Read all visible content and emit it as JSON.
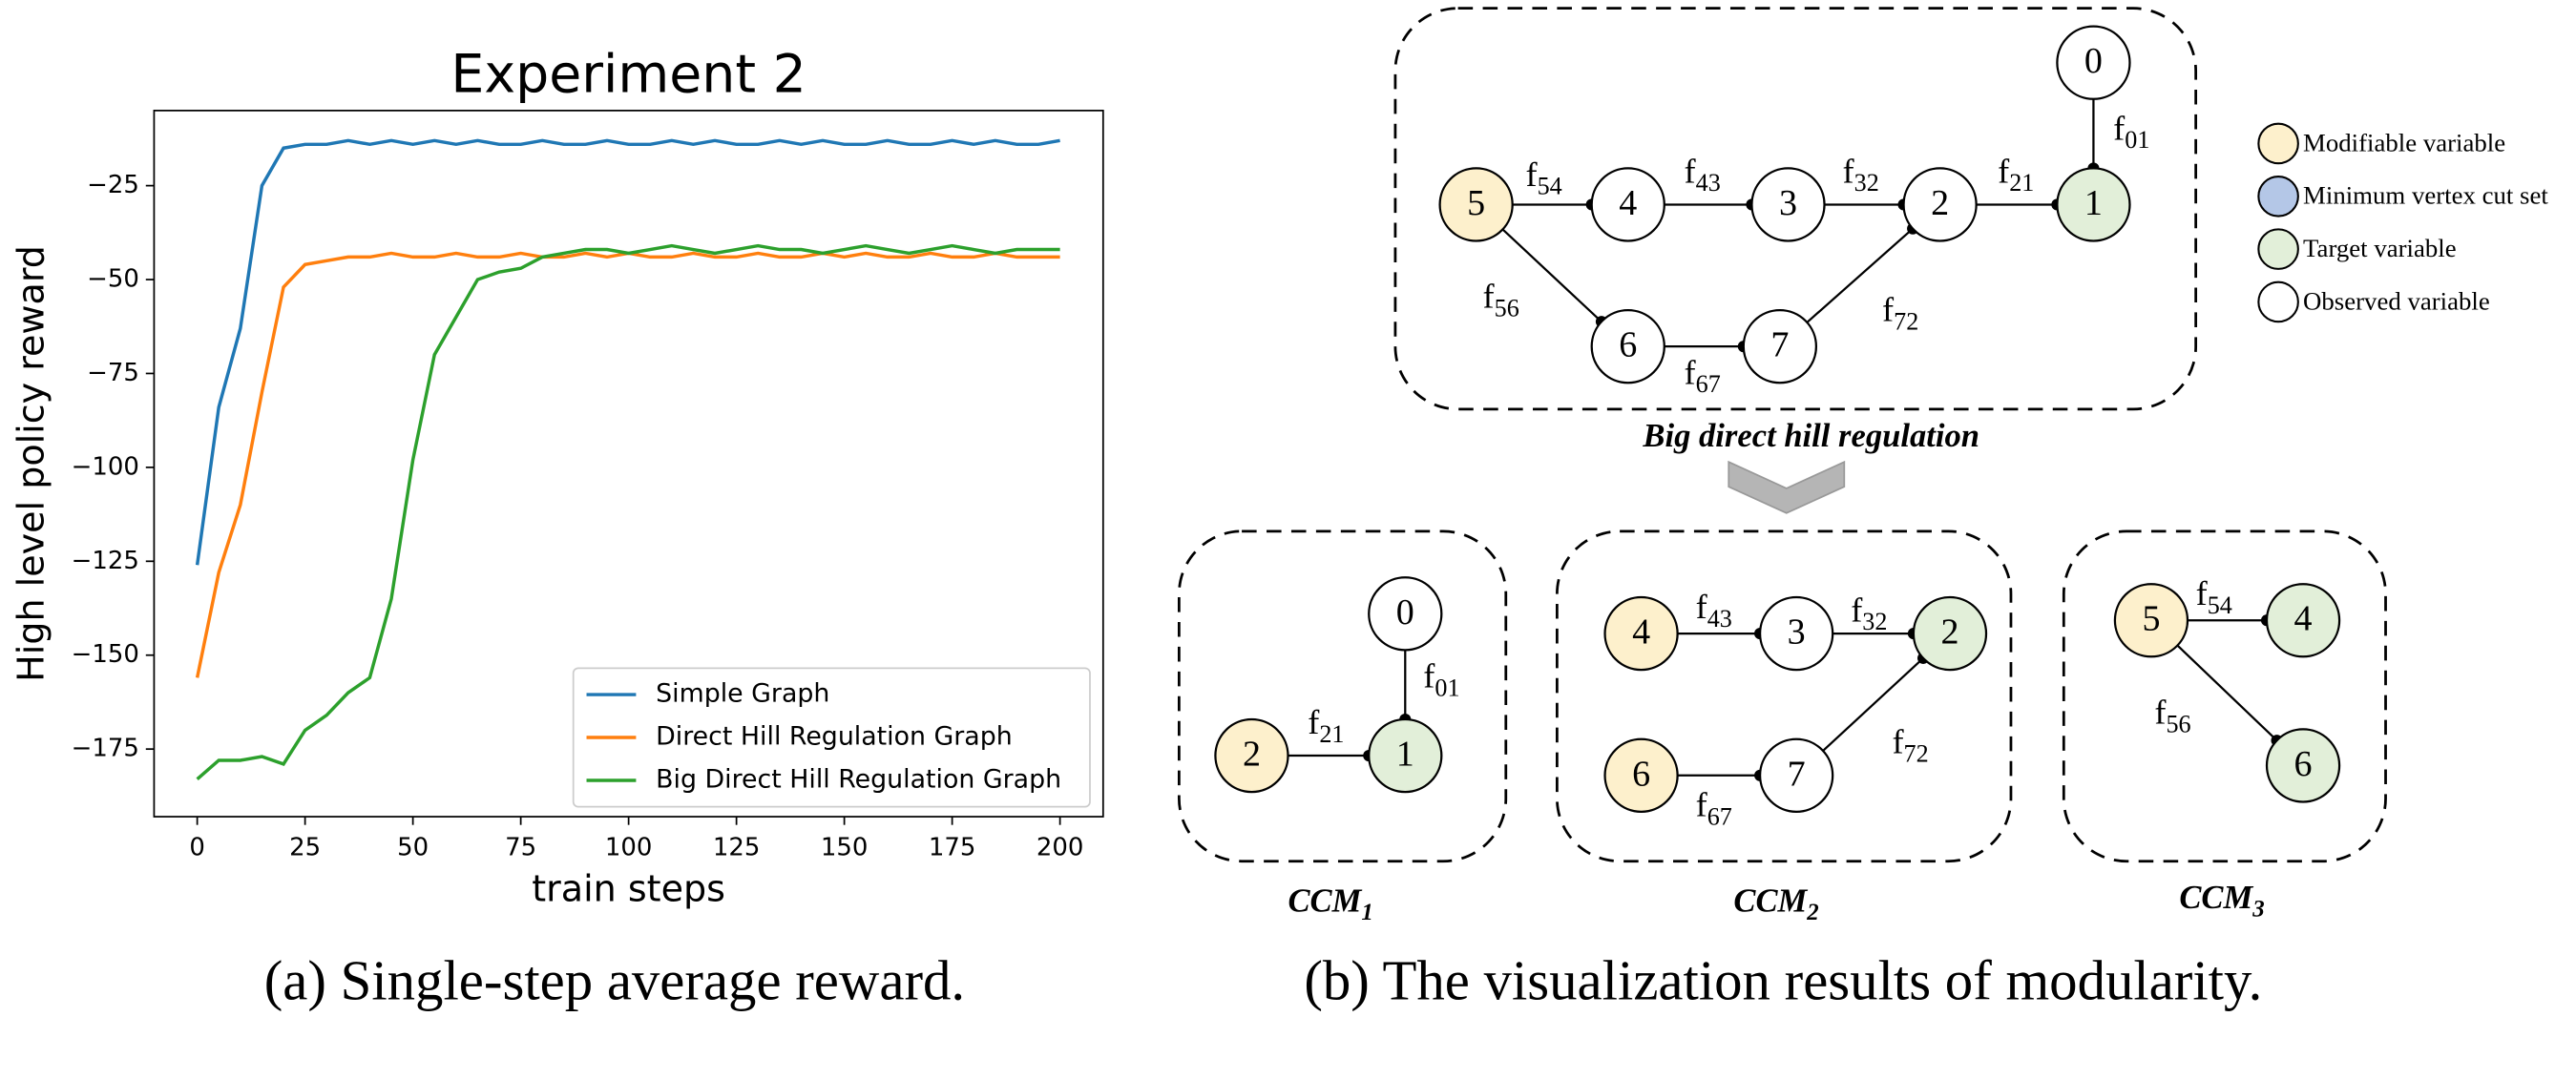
{
  "chart_data": {
    "type": "line",
    "title": "Experiment 2",
    "x_label": "train steps",
    "y_label": "High level policy reward",
    "x": [
      0,
      5,
      10,
      15,
      20,
      25,
      30,
      35,
      40,
      45,
      50,
      55,
      60,
      65,
      70,
      75,
      80,
      85,
      90,
      95,
      100,
      105,
      110,
      115,
      120,
      125,
      130,
      135,
      140,
      145,
      150,
      155,
      160,
      165,
      170,
      175,
      180,
      185,
      190,
      195,
      200
    ],
    "series": [
      {
        "name": "Simple Graph",
        "color": "#1f77b4",
        "values": [
          -126,
          -84,
          -63,
          -25,
          -15,
          -14,
          -14,
          -13,
          -14,
          -13,
          -14,
          -13,
          -14,
          -13,
          -14,
          -14,
          -13,
          -14,
          -14,
          -13,
          -14,
          -14,
          -13,
          -14,
          -13,
          -14,
          -14,
          -13,
          -14,
          -13,
          -14,
          -14,
          -13,
          -14,
          -14,
          -13,
          -14,
          -13,
          -14,
          -14,
          -13
        ]
      },
      {
        "name": "Direct Hill Regulation Graph",
        "color": "#ff7f0e",
        "values": [
          -156,
          -128,
          -110,
          -80,
          -52,
          -46,
          -45,
          -44,
          -44,
          -43,
          -44,
          -44,
          -43,
          -44,
          -44,
          -43,
          -44,
          -44,
          -43,
          -44,
          -43,
          -44,
          -44,
          -43,
          -44,
          -44,
          -43,
          -44,
          -44,
          -43,
          -44,
          -43,
          -44,
          -44,
          -43,
          -44,
          -44,
          -43,
          -44,
          -44,
          -44
        ]
      },
      {
        "name": "Big Direct Hill Regulation Graph",
        "color": "#2ca02c",
        "values": [
          -183,
          -178,
          -178,
          -177,
          -179,
          -170,
          -166,
          -160,
          -156,
          -135,
          -98,
          -70,
          -60,
          -50,
          -48,
          -47,
          -44,
          -43,
          -42,
          -42,
          -43,
          -42,
          -41,
          -42,
          -43,
          -42,
          -41,
          -42,
          -42,
          -43,
          -42,
          -41,
          -42,
          -43,
          -42,
          -41,
          -42,
          -43,
          -42,
          -42,
          -42
        ]
      }
    ],
    "xlim": [
      -10,
      210
    ],
    "ylim": [
      -193,
      -5
    ],
    "xticks": [
      0,
      25,
      50,
      75,
      100,
      125,
      150,
      175,
      200
    ],
    "yticks": [
      {
        "value": -175,
        "label": "−175"
      },
      {
        "value": -150,
        "label": "−150"
      },
      {
        "value": -125,
        "label": "−125"
      },
      {
        "value": -100,
        "label": "−100"
      },
      {
        "value": -75,
        "label": "−75"
      },
      {
        "value": -50,
        "label": "−50"
      },
      {
        "value": -25,
        "label": "−25"
      }
    ],
    "grid": false,
    "legend": "lower right"
  },
  "captions": [
    "(a) Single-step average reward.",
    "(b) The visualization results of modularity."
  ],
  "legend": [
    {
      "label": "Modifiable variable",
      "color": "#fdf0cc"
    },
    {
      "label": "Minimum vertex cut set",
      "color": "#b4c7e7"
    },
    {
      "label": "Target variable",
      "color": "#e2efd9"
    },
    {
      "label": "Observed variable",
      "color": "#ffffff"
    }
  ],
  "graphs": [
    {
      "title": "Big direct hill regulation",
      "nodes": [
        {
          "label": "0",
          "color": "#ffffff"
        },
        {
          "label": "1",
          "color": "#e2efd9"
        },
        {
          "label": "2",
          "color": "#ffffff"
        },
        {
          "label": "3",
          "color": "#ffffff"
        },
        {
          "label": "4",
          "color": "#ffffff"
        },
        {
          "label": "5",
          "color": "#fdf0cc"
        },
        {
          "label": "6",
          "color": "#ffffff"
        },
        {
          "label": "7",
          "color": "#ffffff"
        }
      ],
      "edges": [
        {
          "base": "f",
          "sub": "54"
        },
        {
          "base": "f",
          "sub": "43"
        },
        {
          "base": "f",
          "sub": "32"
        },
        {
          "base": "f",
          "sub": "21"
        },
        {
          "base": "f",
          "sub": "01"
        },
        {
          "base": "f",
          "sub": "56"
        },
        {
          "base": "f",
          "sub": "67"
        },
        {
          "base": "f",
          "sub": "72"
        }
      ]
    },
    {
      "title": {
        "base": "CCM",
        "sub": "1"
      },
      "nodes": [
        {
          "label": "0",
          "color": "#ffffff"
        },
        {
          "label": "1",
          "color": "#e2efd9"
        },
        {
          "label": "2",
          "color": "#fdf0cc"
        }
      ],
      "edges": [
        {
          "base": "f",
          "sub": "01"
        },
        {
          "base": "f",
          "sub": "21"
        }
      ]
    },
    {
      "title": {
        "base": "CCM",
        "sub": "2"
      },
      "nodes": [
        {
          "label": "4",
          "color": "#fdf0cc"
        },
        {
          "label": "3",
          "color": "#ffffff"
        },
        {
          "label": "2",
          "color": "#e2efd9"
        },
        {
          "label": "6",
          "color": "#fdf0cc"
        },
        {
          "label": "7",
          "color": "#ffffff"
        }
      ],
      "edges": [
        {
          "base": "f",
          "sub": "43"
        },
        {
          "base": "f",
          "sub": "32"
        },
        {
          "base": "f",
          "sub": "67"
        },
        {
          "base": "f",
          "sub": "72"
        }
      ]
    },
    {
      "title": {
        "base": "CCM",
        "sub": "3"
      },
      "nodes": [
        {
          "label": "5",
          "color": "#fdf0cc"
        },
        {
          "label": "4",
          "color": "#e2efd9"
        },
        {
          "label": "6",
          "color": "#e2efd9"
        }
      ],
      "edges": [
        {
          "base": "f",
          "sub": "54"
        },
        {
          "base": "f",
          "sub": "56"
        }
      ]
    }
  ]
}
